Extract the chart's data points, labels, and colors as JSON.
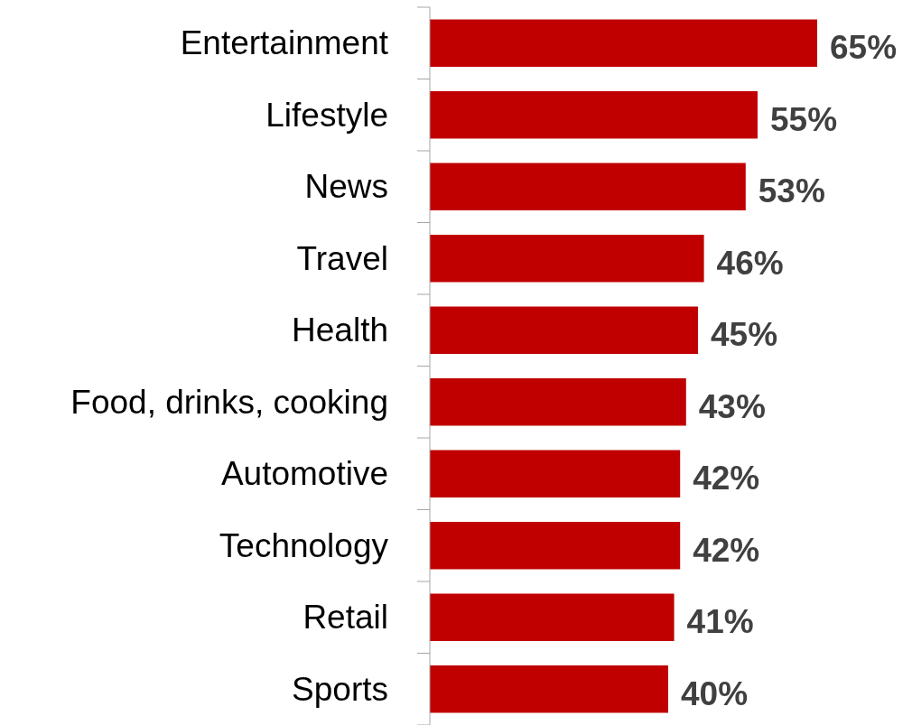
{
  "chart_data": {
    "type": "bar",
    "orientation": "horizontal",
    "categories": [
      "Entertainment",
      "Lifestyle",
      "News",
      "Travel",
      "Health",
      "Food, drinks, cooking",
      "Automotive",
      "Technology",
      "Retail",
      "Sports"
    ],
    "values": [
      65,
      55,
      53,
      46,
      45,
      43,
      42,
      42,
      41,
      40
    ],
    "value_labels": [
      "65%",
      "55%",
      "53%",
      "46%",
      "45%",
      "43%",
      "42%",
      "42%",
      "41%",
      "40%"
    ],
    "color": "#c00000"
  }
}
